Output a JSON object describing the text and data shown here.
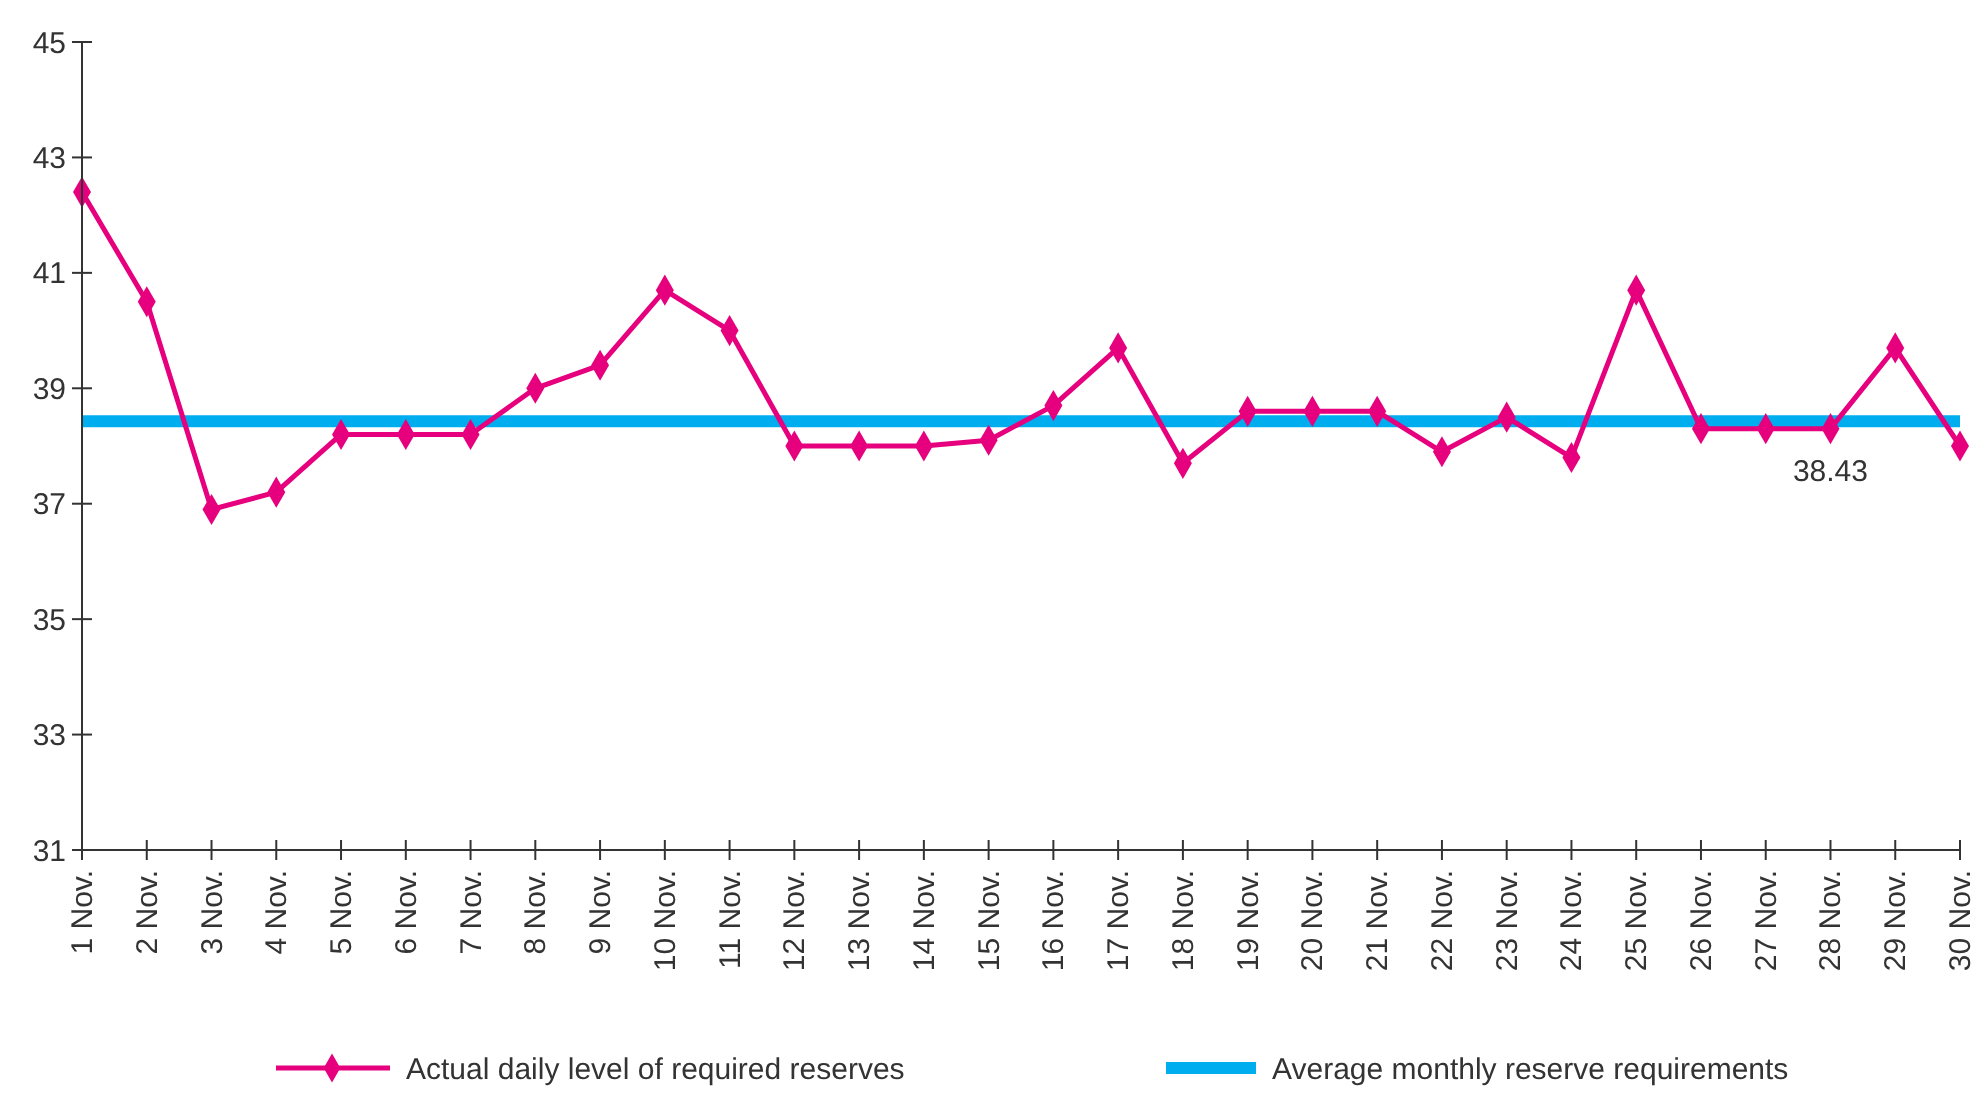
{
  "chart_data": {
    "type": "line",
    "categories": [
      "1 Nov.",
      "2 Nov.",
      "3 Nov.",
      "4 Nov.",
      "5 Nov.",
      "6 Nov.",
      "7 Nov.",
      "8 Nov.",
      "9 Nov.",
      "10 Nov.",
      "11 Nov.",
      "12 Nov.",
      "13 Nov.",
      "14 Nov.",
      "15 Nov.",
      "16 Nov.",
      "17 Nov.",
      "18 Nov.",
      "19 Nov.",
      "20 Nov.",
      "21 Nov.",
      "22 Nov.",
      "23 Nov.",
      "24 Nov.",
      "25 Nov.",
      "26 Nov.",
      "27 Nov.",
      "28 Nov.",
      "29 Nov.",
      "30 Nov."
    ],
    "series": [
      {
        "name": "Actual daily level of required reserves",
        "color": "#e6007e",
        "values": [
          42.4,
          40.5,
          36.9,
          37.2,
          38.2,
          38.2,
          38.2,
          39.0,
          39.4,
          40.7,
          40.0,
          38.0,
          38.0,
          38.0,
          38.1,
          38.7,
          39.7,
          37.7,
          38.6,
          38.6,
          38.6,
          37.9,
          38.5,
          37.8,
          40.7,
          38.3,
          38.3,
          38.3,
          39.7,
          38.0
        ]
      }
    ],
    "ref_lines": [
      {
        "axis": "y",
        "value": 38.43,
        "label": "Average monthly reserve requirements",
        "color": "#00aeef"
      }
    ],
    "annotations": [
      {
        "text": "38.43",
        "x": "28 Nov.",
        "y": 38.43
      }
    ],
    "ylim": [
      31,
      45
    ],
    "yticks": [
      31,
      33,
      35,
      37,
      39,
      41,
      43,
      45
    ],
    "marker": "diamond",
    "line_style": "solid",
    "grid": false,
    "legend": "bottom"
  }
}
